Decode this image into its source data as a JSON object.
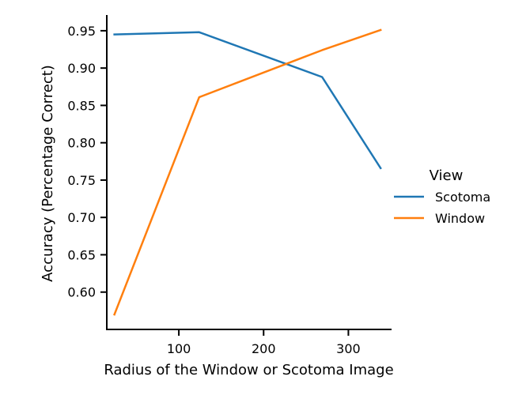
{
  "chart_data": {
    "type": "line",
    "xlabel": "Radius of the Window or Scotoma Image",
    "ylabel": "Accuracy (Percentage Correct)",
    "xlim": [
      15,
      350
    ],
    "ylim": [
      0.55,
      0.97
    ],
    "xticks": [
      100,
      200,
      300
    ],
    "xtick_labels": [
      "100",
      "200",
      "300"
    ],
    "yticks": [
      0.6,
      0.65,
      0.7,
      0.75,
      0.8,
      0.85,
      0.9,
      0.95
    ],
    "ytick_labels": [
      "0.60",
      "0.65",
      "0.70",
      "0.75",
      "0.80",
      "0.85",
      "0.90",
      "0.95"
    ],
    "grid": false,
    "legend": {
      "title": "View",
      "placement": "right"
    },
    "series": [
      {
        "name": "Scotoma",
        "color": "#1f77b4",
        "x": [
          24,
          124,
          269,
          338
        ],
        "values": [
          0.945,
          0.948,
          0.888,
          0.766
        ]
      },
      {
        "name": "Window",
        "color": "#ff7f0e",
        "x": [
          24,
          124,
          269,
          338
        ],
        "values": [
          0.57,
          0.861,
          0.924,
          0.951
        ]
      }
    ]
  }
}
